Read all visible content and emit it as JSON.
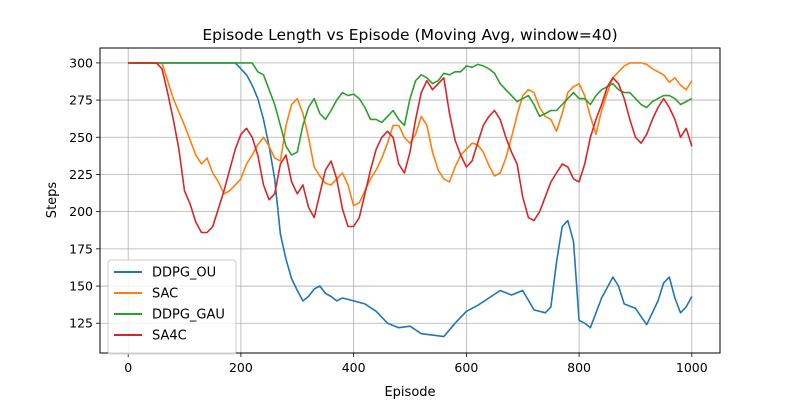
{
  "chart_data": {
    "type": "line",
    "title": "Episode Length vs Episode (Moving Avg, window=40)",
    "xlabel": "Episode",
    "ylabel": "Steps",
    "xlim": [
      -50,
      1050
    ],
    "ylim": [
      105,
      310
    ],
    "xticks": [
      0,
      200,
      400,
      600,
      800,
      1000
    ],
    "yticks": [
      125,
      150,
      175,
      200,
      225,
      250,
      275,
      300
    ],
    "grid": true,
    "legend_position": "lower-left",
    "series": [
      {
        "name": "DDPG_OU",
        "color": "#1f77b4",
        "x": [
          0,
          100,
          190,
          200,
          210,
          220,
          230,
          240,
          250,
          260,
          270,
          280,
          290,
          300,
          310,
          320,
          330,
          340,
          350,
          360,
          370,
          380,
          390,
          400,
          420,
          440,
          460,
          480,
          500,
          520,
          540,
          560,
          580,
          600,
          620,
          640,
          660,
          680,
          700,
          720,
          740,
          750,
          760,
          770,
          780,
          790,
          800,
          810,
          820,
          840,
          860,
          870,
          880,
          900,
          920,
          940,
          950,
          960,
          970,
          980,
          990,
          1000
        ],
        "y": [
          300,
          300,
          300,
          296,
          292,
          285,
          276,
          262,
          244,
          222,
          185,
          168,
          155,
          147,
          140,
          143,
          148,
          150,
          145,
          143,
          140,
          142,
          141,
          140,
          138,
          133,
          125,
          122,
          123,
          118,
          117,
          116,
          125,
          133,
          137,
          142,
          147,
          144,
          147,
          134,
          132,
          136,
          166,
          190,
          194,
          180,
          127,
          125,
          122,
          142,
          156,
          150,
          138,
          135,
          124,
          140,
          152,
          156,
          142,
          132,
          136,
          143
        ]
      },
      {
        "name": "SAC",
        "color": "#ff7f0e",
        "x": [
          0,
          60,
          80,
          100,
          110,
          120,
          130,
          140,
          150,
          160,
          170,
          180,
          190,
          200,
          210,
          220,
          230,
          240,
          250,
          260,
          270,
          280,
          290,
          300,
          310,
          320,
          330,
          340,
          350,
          360,
          370,
          380,
          390,
          400,
          410,
          420,
          430,
          440,
          450,
          460,
          470,
          480,
          490,
          500,
          510,
          520,
          530,
          540,
          550,
          560,
          570,
          580,
          590,
          600,
          610,
          620,
          630,
          640,
          650,
          660,
          670,
          680,
          690,
          700,
          710,
          720,
          730,
          740,
          750,
          760,
          770,
          780,
          790,
          800,
          810,
          820,
          830,
          840,
          850,
          860,
          870,
          880,
          890,
          900,
          910,
          920,
          930,
          940,
          950,
          960,
          970,
          980,
          990,
          1000
        ],
        "y": [
          300,
          300,
          276,
          258,
          248,
          238,
          232,
          236,
          226,
          220,
          212,
          214,
          218,
          222,
          232,
          238,
          245,
          250,
          244,
          236,
          234,
          258,
          272,
          276,
          266,
          250,
          230,
          224,
          219,
          218,
          222,
          226,
          218,
          204,
          206,
          214,
          222,
          228,
          236,
          246,
          258,
          258,
          250,
          246,
          252,
          264,
          258,
          240,
          228,
          222,
          220,
          230,
          238,
          242,
          246,
          245,
          240,
          231,
          224,
          226,
          236,
          250,
          265,
          278,
          282,
          280,
          270,
          264,
          262,
          254,
          266,
          280,
          284,
          286,
          278,
          264,
          252,
          268,
          280,
          290,
          294,
          298,
          300,
          300,
          300,
          299,
          296,
          294,
          292,
          287,
          290,
          285,
          282,
          288
        ]
      },
      {
        "name": "DDPG_GAU",
        "color": "#2ca02c",
        "x": [
          0,
          220,
          230,
          240,
          250,
          260,
          270,
          280,
          290,
          300,
          310,
          320,
          330,
          340,
          350,
          360,
          370,
          380,
          390,
          400,
          410,
          420,
          430,
          440,
          450,
          460,
          470,
          480,
          490,
          500,
          510,
          520,
          530,
          540,
          550,
          560,
          570,
          580,
          590,
          600,
          610,
          620,
          630,
          640,
          650,
          660,
          670,
          680,
          690,
          700,
          710,
          720,
          730,
          740,
          750,
          760,
          770,
          780,
          790,
          800,
          810,
          820,
          830,
          840,
          850,
          860,
          870,
          880,
          890,
          900,
          910,
          920,
          930,
          940,
          950,
          960,
          970,
          980,
          990,
          1000
        ],
        "y": [
          300,
          300,
          294,
          292,
          282,
          272,
          258,
          244,
          238,
          240,
          258,
          270,
          276,
          266,
          262,
          268,
          275,
          280,
          278,
          279,
          276,
          270,
          262,
          262,
          260,
          264,
          268,
          262,
          258,
          276,
          288,
          292,
          290,
          286,
          288,
          293,
          292,
          294,
          294,
          298,
          297,
          299,
          298,
          296,
          293,
          286,
          282,
          278,
          274,
          276,
          278,
          272,
          264,
          266,
          268,
          268,
          272,
          276,
          280,
          276,
          276,
          272,
          278,
          282,
          284,
          286,
          282,
          280,
          280,
          276,
          272,
          270,
          274,
          276,
          278,
          278,
          276,
          272,
          274,
          276
        ]
      },
      {
        "name": "SA4C",
        "color": "#d62728",
        "x": [
          0,
          50,
          60,
          70,
          80,
          90,
          100,
          110,
          120,
          130,
          140,
          150,
          160,
          170,
          180,
          190,
          200,
          210,
          220,
          230,
          240,
          250,
          260,
          270,
          280,
          290,
          300,
          310,
          320,
          330,
          340,
          350,
          360,
          370,
          380,
          390,
          400,
          410,
          420,
          430,
          440,
          450,
          460,
          470,
          480,
          490,
          500,
          510,
          520,
          530,
          540,
          550,
          560,
          570,
          580,
          590,
          600,
          610,
          620,
          630,
          640,
          650,
          660,
          670,
          680,
          690,
          700,
          710,
          720,
          730,
          740,
          750,
          760,
          770,
          780,
          790,
          800,
          810,
          820,
          830,
          840,
          850,
          860,
          870,
          880,
          890,
          900,
          910,
          920,
          930,
          940,
          950,
          960,
          970,
          980,
          990,
          1000
        ],
        "y": [
          300,
          300,
          296,
          280,
          262,
          242,
          214,
          205,
          193,
          186,
          186,
          190,
          202,
          214,
          228,
          242,
          252,
          256,
          250,
          238,
          218,
          208,
          212,
          232,
          238,
          220,
          212,
          218,
          203,
          196,
          212,
          228,
          234,
          222,
          202,
          190,
          190,
          196,
          212,
          228,
          242,
          250,
          254,
          250,
          232,
          226,
          240,
          262,
          280,
          288,
          282,
          286,
          290,
          266,
          248,
          238,
          230,
          234,
          246,
          258,
          264,
          268,
          262,
          250,
          240,
          232,
          210,
          196,
          194,
          200,
          210,
          220,
          226,
          232,
          230,
          222,
          220,
          232,
          250,
          262,
          272,
          284,
          290,
          286,
          276,
          262,
          250,
          246,
          252,
          262,
          270,
          276,
          270,
          262,
          250,
          256,
          244
        ]
      }
    ]
  }
}
